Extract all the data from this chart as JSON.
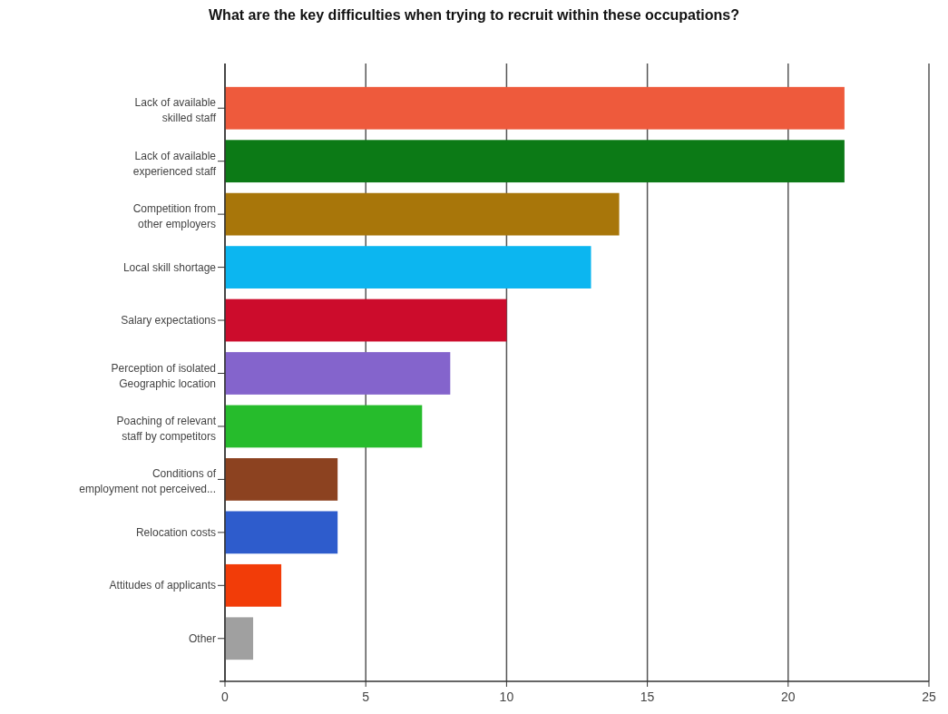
{
  "chart_data": {
    "type": "bar",
    "orientation": "horizontal",
    "title": "What are the key difficulties when trying to recruit within these occupations?",
    "categories": [
      "Lack of available\nskilled staff",
      "Lack of available\nexperienced staff",
      "Competition from\nother employers",
      "Local skill shortage",
      "Salary expectations",
      "Perception of isolated\nGeographic location",
      "Poaching of relevant\nstaff by competitors",
      "Conditions of\nemployment not perceived...",
      "Relocation costs",
      "Attitudes of applicants",
      "Other"
    ],
    "values": [
      22,
      22,
      14,
      13,
      10,
      8,
      7,
      4,
      4,
      2,
      1
    ],
    "colors": [
      "#ee5a3c",
      "#0c7a16",
      "#a8760a",
      "#0cb6f0",
      "#cc0c2c",
      "#8464cc",
      "#26bc2c",
      "#8c4220",
      "#2e5ccc",
      "#f23c08",
      "#a0a0a0"
    ],
    "xlim": [
      0,
      25
    ],
    "xticks": [
      0,
      5,
      10,
      15,
      20,
      25
    ],
    "grid": "x"
  }
}
